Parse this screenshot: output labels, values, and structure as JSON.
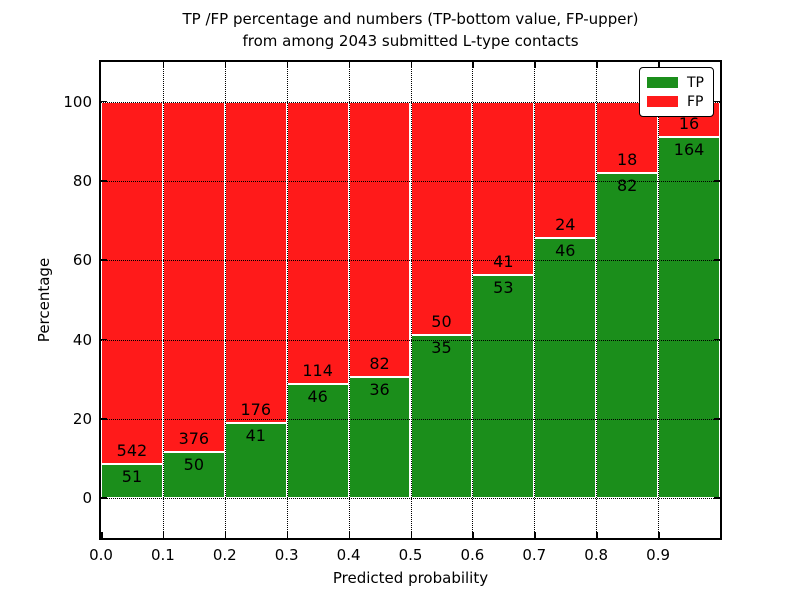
{
  "chart_data": {
    "type": "bar",
    "stacked": true,
    "orientation": "vertical",
    "title_line1": "TP /FP percentage and numbers (TP-bottom value, FP-upper)",
    "title_line2": "from among 2043 submitted L-type contacts",
    "total_contacts": 2043,
    "xlabel": "Predicted probability",
    "ylabel": "Percentage",
    "x_ticks": [
      "0.0",
      "0.1",
      "0.2",
      "0.3",
      "0.4",
      "0.5",
      "0.6",
      "0.7",
      "0.8",
      "0.9"
    ],
    "y_ticks": [
      "0",
      "20",
      "40",
      "60",
      "80",
      "100"
    ],
    "y_tick_values": [
      0,
      20,
      40,
      60,
      80,
      100
    ],
    "xlim": [
      0.0,
      1.0
    ],
    "ylim": [
      -10,
      110
    ],
    "bin_width": 0.1,
    "bin_starts": [
      0.0,
      0.1,
      0.2,
      0.3,
      0.4,
      0.5,
      0.6,
      0.7,
      0.8,
      0.9
    ],
    "grid": true,
    "grid_style": "dotted",
    "legend_position": "upper right",
    "series": [
      {
        "name": "TP",
        "color": "#1b8e1b",
        "values": [
          51,
          50,
          41,
          46,
          36,
          35,
          53,
          46,
          82,
          164
        ]
      },
      {
        "name": "FP",
        "color": "#ff1a1a",
        "values": [
          542,
          376,
          176,
          114,
          82,
          50,
          41,
          24,
          18,
          16
        ]
      }
    ],
    "tp_percent": [
      8.6,
      11.74,
      18.89,
      28.75,
      30.51,
      41.18,
      56.38,
      65.71,
      82.0,
      91.11
    ],
    "bar_edge_color": "#ffffff",
    "axes_color": "#000000"
  }
}
